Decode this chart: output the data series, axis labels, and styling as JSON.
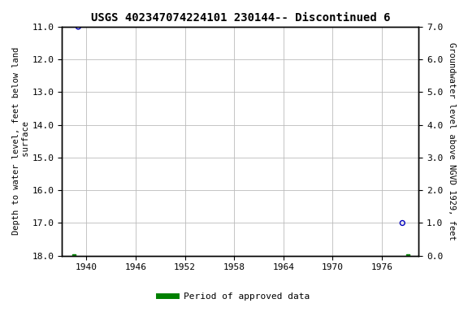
{
  "title": "USGS 402347074224101 230144-- Discontinued 6",
  "title_fontsize": 10,
  "ylabel_left": "Depth to water level, feet below land\n surface",
  "ylabel_right": "Groundwater level above NGVD 1929, feet",
  "xlim": [
    1937.0,
    1980.5
  ],
  "ylim_left": [
    11.0,
    18.0
  ],
  "ylim_right": [
    0.0,
    7.0
  ],
  "xticks": [
    1940,
    1946,
    1952,
    1958,
    1964,
    1970,
    1976
  ],
  "yticks_left": [
    11.0,
    12.0,
    13.0,
    14.0,
    15.0,
    16.0,
    17.0,
    18.0
  ],
  "yticks_right": [
    0.0,
    1.0,
    2.0,
    3.0,
    4.0,
    5.0,
    6.0,
    7.0
  ],
  "scatter_points": [
    {
      "x": 1939.0,
      "y_left": 11.0,
      "color": "#0000bb",
      "marker": "o",
      "facecolor": "none",
      "size": 18
    },
    {
      "x": 1978.5,
      "y_left": 17.0,
      "color": "#0000bb",
      "marker": "o",
      "facecolor": "none",
      "size": 18
    }
  ],
  "approved_markers": [
    {
      "x": 1938.5,
      "y_left": 18.0
    },
    {
      "x": 1979.2,
      "y_left": 18.0
    }
  ],
  "background_color": "#ffffff",
  "grid_color": "#bbbbbb",
  "font_family": "DejaVu Sans Mono",
  "tick_fontsize": 8,
  "label_fontsize": 7.5,
  "legend_label": "Period of approved data",
  "legend_color": "#008000"
}
